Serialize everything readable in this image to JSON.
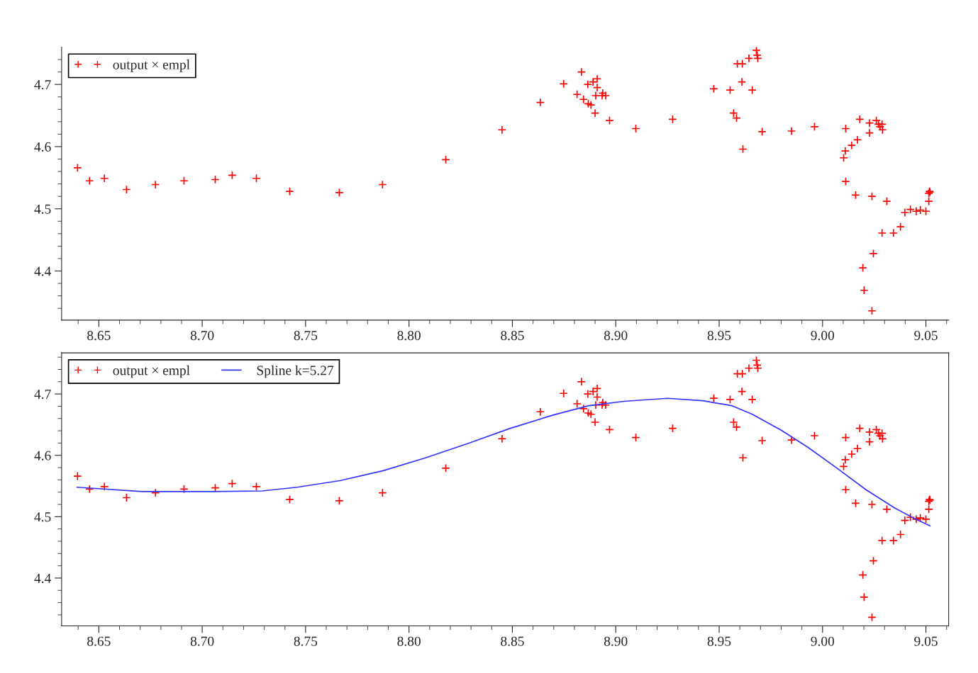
{
  "chart_data": [
    {
      "type": "scatter",
      "legend": "top left",
      "grid": false,
      "marker": "cross",
      "xlim": [
        8.632,
        9.061
      ],
      "ylim": [
        4.321,
        4.76
      ],
      "xticks": [
        {
          "value": 8.64,
          "label": null
        },
        {
          "value": 8.65,
          "label": "8.65"
        },
        {
          "value": 8.66,
          "label": null
        },
        {
          "value": 8.67,
          "label": null
        },
        {
          "value": 8.68,
          "label": null
        },
        {
          "value": 8.69,
          "label": null
        },
        {
          "value": 8.7,
          "label": "8.70"
        },
        {
          "value": 8.71,
          "label": null
        },
        {
          "value": 8.72,
          "label": null
        },
        {
          "value": 8.73,
          "label": null
        },
        {
          "value": 8.74,
          "label": null
        },
        {
          "value": 8.75,
          "label": "8.75"
        },
        {
          "value": 8.76,
          "label": null
        },
        {
          "value": 8.77,
          "label": null
        },
        {
          "value": 8.78,
          "label": null
        },
        {
          "value": 8.79,
          "label": null
        },
        {
          "value": 8.8,
          "label": "8.80"
        },
        {
          "value": 8.81,
          "label": null
        },
        {
          "value": 8.82,
          "label": null
        },
        {
          "value": 8.83,
          "label": null
        },
        {
          "value": 8.84,
          "label": null
        },
        {
          "value": 8.85,
          "label": "8.85"
        },
        {
          "value": 8.86,
          "label": null
        },
        {
          "value": 8.87,
          "label": null
        },
        {
          "value": 8.88,
          "label": null
        },
        {
          "value": 8.89,
          "label": null
        },
        {
          "value": 8.9,
          "label": "8.90"
        },
        {
          "value": 8.91,
          "label": null
        },
        {
          "value": 8.92,
          "label": null
        },
        {
          "value": 8.93,
          "label": null
        },
        {
          "value": 8.94,
          "label": null
        },
        {
          "value": 8.95,
          "label": "8.95"
        },
        {
          "value": 8.96,
          "label": null
        },
        {
          "value": 8.97,
          "label": null
        },
        {
          "value": 8.98,
          "label": null
        },
        {
          "value": 8.99,
          "label": null
        },
        {
          "value": 9.0,
          "label": "9.00"
        },
        {
          "value": 9.01,
          "label": null
        },
        {
          "value": 9.02,
          "label": null
        },
        {
          "value": 9.03,
          "label": null
        },
        {
          "value": 9.04,
          "label": null
        },
        {
          "value": 9.05,
          "label": "9.05"
        },
        {
          "value": 9.06,
          "label": null
        }
      ],
      "yticks": [
        {
          "value": 4.34,
          "label": null
        },
        {
          "value": 4.36,
          "label": null
        },
        {
          "value": 4.38,
          "label": null
        },
        {
          "value": 4.4,
          "label": "4.4"
        },
        {
          "value": 4.42,
          "label": null
        },
        {
          "value": 4.44,
          "label": null
        },
        {
          "value": 4.46,
          "label": null
        },
        {
          "value": 4.48,
          "label": null
        },
        {
          "value": 4.5,
          "label": "4.5"
        },
        {
          "value": 4.52,
          "label": null
        },
        {
          "value": 4.54,
          "label": null
        },
        {
          "value": 4.56,
          "label": null
        },
        {
          "value": 4.58,
          "label": null
        },
        {
          "value": 4.6,
          "label": "4.6"
        },
        {
          "value": 4.62,
          "label": null
        },
        {
          "value": 4.64,
          "label": null
        },
        {
          "value": 4.66,
          "label": null
        },
        {
          "value": 4.68,
          "label": null
        },
        {
          "value": 4.7,
          "label": "4.7"
        },
        {
          "value": 4.72,
          "label": null
        },
        {
          "value": 4.74,
          "label": null
        }
      ],
      "series": [
        {
          "name": "output × empl",
          "color": "#ff0000",
          "x": [
            8.6397,
            8.6455,
            8.6527,
            8.6634,
            8.6774,
            8.6912,
            8.7063,
            8.7145,
            8.7262,
            8.7423,
            8.7663,
            8.7872,
            8.8178,
            8.845,
            8.8635,
            8.8748,
            8.8834,
            8.8813,
            8.8844,
            8.8865,
            8.889,
            8.891,
            8.891,
            8.8903,
            8.8934,
            8.8937,
            8.8951,
            8.8867,
            8.888,
            8.89,
            8.897,
            8.9097,
            8.9275,
            8.9474,
            8.9553,
            8.9588,
            8.9612,
            8.961,
            8.9644,
            8.966,
            8.968,
            8.9684,
            8.9687,
            8.957,
            8.9584,
            8.9615,
            8.9708,
            8.985,
            8.9961,
            9.0112,
            9.018,
            9.0227,
            9.0227,
            9.026,
            9.027,
            9.0278,
            9.0288,
            9.029,
            9.0169,
            9.0141,
            9.011,
            9.0102,
            9.0112,
            9.016,
            9.0239,
            9.0311,
            9.0288,
            9.0343,
            9.0377,
            9.0398,
            9.0425,
            9.0453,
            9.0473,
            9.05,
            9.0514,
            9.0514,
            9.0517,
            9.052,
            9.0246,
            9.0195,
            9.0201,
            9.0239
          ],
          "values": [
            4.566,
            4.545,
            4.549,
            4.531,
            4.539,
            4.545,
            4.547,
            4.554,
            4.549,
            4.528,
            4.526,
            4.539,
            4.579,
            4.627,
            4.671,
            4.701,
            4.72,
            4.684,
            4.676,
            4.7,
            4.704,
            4.709,
            4.695,
            4.682,
            4.682,
            4.686,
            4.682,
            4.669,
            4.667,
            4.654,
            4.642,
            4.629,
            4.644,
            4.693,
            4.691,
            4.733,
            4.733,
            4.704,
            4.742,
            4.691,
            4.755,
            4.747,
            4.742,
            4.654,
            4.646,
            4.596,
            4.624,
            4.625,
            4.632,
            4.629,
            4.644,
            4.638,
            4.622,
            4.642,
            4.636,
            4.632,
            4.636,
            4.627,
            4.611,
            4.602,
            4.593,
            4.582,
            4.544,
            4.522,
            4.52,
            4.512,
            4.461,
            4.461,
            4.471,
            4.494,
            4.499,
            4.496,
            4.498,
            4.496,
            4.512,
            4.525,
            4.528,
            4.527,
            4.428,
            4.405,
            4.369,
            4.336
          ]
        }
      ]
    },
    {
      "type": "scatter",
      "legend": "top left",
      "grid": false,
      "marker": "cross",
      "xlim": [
        8.632,
        9.061
      ],
      "ylim": [
        4.322,
        4.767
      ],
      "xticks": [
        {
          "value": 8.64,
          "label": null
        },
        {
          "value": 8.65,
          "label": "8.65"
        },
        {
          "value": 8.66,
          "label": null
        },
        {
          "value": 8.67,
          "label": null
        },
        {
          "value": 8.68,
          "label": null
        },
        {
          "value": 8.69,
          "label": null
        },
        {
          "value": 8.7,
          "label": "8.70"
        },
        {
          "value": 8.71,
          "label": null
        },
        {
          "value": 8.72,
          "label": null
        },
        {
          "value": 8.73,
          "label": null
        },
        {
          "value": 8.74,
          "label": null
        },
        {
          "value": 8.75,
          "label": "8.75"
        },
        {
          "value": 8.76,
          "label": null
        },
        {
          "value": 8.77,
          "label": null
        },
        {
          "value": 8.78,
          "label": null
        },
        {
          "value": 8.79,
          "label": null
        },
        {
          "value": 8.8,
          "label": "8.80"
        },
        {
          "value": 8.81,
          "label": null
        },
        {
          "value": 8.82,
          "label": null
        },
        {
          "value": 8.83,
          "label": null
        },
        {
          "value": 8.84,
          "label": null
        },
        {
          "value": 8.85,
          "label": "8.85"
        },
        {
          "value": 8.86,
          "label": null
        },
        {
          "value": 8.87,
          "label": null
        },
        {
          "value": 8.88,
          "label": null
        },
        {
          "value": 8.89,
          "label": null
        },
        {
          "value": 8.9,
          "label": "8.90"
        },
        {
          "value": 8.91,
          "label": null
        },
        {
          "value": 8.92,
          "label": null
        },
        {
          "value": 8.93,
          "label": null
        },
        {
          "value": 8.94,
          "label": null
        },
        {
          "value": 8.95,
          "label": "8.95"
        },
        {
          "value": 8.96,
          "label": null
        },
        {
          "value": 8.97,
          "label": null
        },
        {
          "value": 8.98,
          "label": null
        },
        {
          "value": 8.99,
          "label": null
        },
        {
          "value": 9.0,
          "label": "9.00"
        },
        {
          "value": 9.01,
          "label": null
        },
        {
          "value": 9.02,
          "label": null
        },
        {
          "value": 9.03,
          "label": null
        },
        {
          "value": 9.04,
          "label": null
        },
        {
          "value": 9.05,
          "label": "9.05"
        },
        {
          "value": 9.06,
          "label": null
        }
      ],
      "yticks": [
        {
          "value": 4.34,
          "label": null
        },
        {
          "value": 4.36,
          "label": null
        },
        {
          "value": 4.38,
          "label": null
        },
        {
          "value": 4.4,
          "label": "4.4"
        },
        {
          "value": 4.42,
          "label": null
        },
        {
          "value": 4.44,
          "label": null
        },
        {
          "value": 4.46,
          "label": null
        },
        {
          "value": 4.48,
          "label": null
        },
        {
          "value": 4.5,
          "label": "4.5"
        },
        {
          "value": 4.52,
          "label": null
        },
        {
          "value": 4.54,
          "label": null
        },
        {
          "value": 4.56,
          "label": null
        },
        {
          "value": 4.58,
          "label": null
        },
        {
          "value": 4.6,
          "label": "4.6"
        },
        {
          "value": 4.62,
          "label": null
        },
        {
          "value": 4.64,
          "label": null
        },
        {
          "value": 4.66,
          "label": null
        },
        {
          "value": 4.68,
          "label": null
        },
        {
          "value": 4.7,
          "label": "4.7"
        },
        {
          "value": 4.72,
          "label": null
        },
        {
          "value": 4.74,
          "label": null
        },
        {
          "value": 4.76,
          "label": null
        }
      ],
      "series": [
        {
          "name": "output × empl",
          "color": "#ff0000",
          "type": "scatter",
          "x": [
            8.6397,
            8.6455,
            8.6527,
            8.6634,
            8.6774,
            8.6912,
            8.7063,
            8.7145,
            8.7262,
            8.7423,
            8.7663,
            8.7872,
            8.8178,
            8.845,
            8.8635,
            8.8748,
            8.8834,
            8.8813,
            8.8844,
            8.8865,
            8.889,
            8.891,
            8.891,
            8.8903,
            8.8934,
            8.8937,
            8.8951,
            8.8867,
            8.888,
            8.89,
            8.897,
            8.9097,
            8.9275,
            8.9474,
            8.9553,
            8.9588,
            8.9612,
            8.961,
            8.9644,
            8.966,
            8.968,
            8.9684,
            8.9687,
            8.957,
            8.9584,
            8.9615,
            8.9708,
            8.985,
            8.9961,
            9.0112,
            9.018,
            9.0227,
            9.0227,
            9.026,
            9.027,
            9.0278,
            9.0288,
            9.029,
            9.0169,
            9.0141,
            9.011,
            9.0102,
            9.0112,
            9.016,
            9.0239,
            9.0311,
            9.0288,
            9.0343,
            9.0377,
            9.0398,
            9.0425,
            9.0453,
            9.0473,
            9.05,
            9.0514,
            9.0514,
            9.0517,
            9.052,
            9.0246,
            9.0195,
            9.0201,
            9.0239
          ],
          "values": [
            4.566,
            4.545,
            4.549,
            4.531,
            4.539,
            4.545,
            4.547,
            4.554,
            4.549,
            4.528,
            4.526,
            4.539,
            4.579,
            4.627,
            4.671,
            4.701,
            4.72,
            4.684,
            4.676,
            4.7,
            4.704,
            4.709,
            4.695,
            4.682,
            4.682,
            4.686,
            4.682,
            4.669,
            4.667,
            4.654,
            4.642,
            4.629,
            4.644,
            4.693,
            4.691,
            4.733,
            4.733,
            4.704,
            4.742,
            4.691,
            4.755,
            4.747,
            4.742,
            4.654,
            4.646,
            4.596,
            4.624,
            4.625,
            4.632,
            4.629,
            4.644,
            4.638,
            4.622,
            4.642,
            4.636,
            4.632,
            4.636,
            4.627,
            4.611,
            4.602,
            4.593,
            4.582,
            4.544,
            4.522,
            4.52,
            4.512,
            4.461,
            4.461,
            4.471,
            4.494,
            4.499,
            4.496,
            4.498,
            4.496,
            4.512,
            4.525,
            4.528,
            4.527,
            4.428,
            4.405,
            4.369,
            4.336
          ]
        },
        {
          "name": "Spline k=5.27",
          "color": "#3333ff",
          "type": "line",
          "marker": "none",
          "x": [
            8.6394,
            8.671,
            8.705,
            8.729,
            8.746,
            8.767,
            8.7876,
            8.808,
            8.829,
            8.849,
            8.87,
            8.887,
            8.904,
            8.925,
            8.942,
            8.956,
            8.966,
            8.98,
            8.993,
            9.007,
            9.021,
            9.035,
            9.045,
            9.052
          ],
          "values": [
            4.548,
            4.541,
            4.541,
            4.542,
            4.548,
            4.559,
            4.575,
            4.596,
            4.62,
            4.644,
            4.666,
            4.681,
            4.688,
            4.693,
            4.689,
            4.681,
            4.667,
            4.641,
            4.613,
            4.579,
            4.544,
            4.514,
            4.496,
            4.485
          ]
        }
      ]
    }
  ]
}
